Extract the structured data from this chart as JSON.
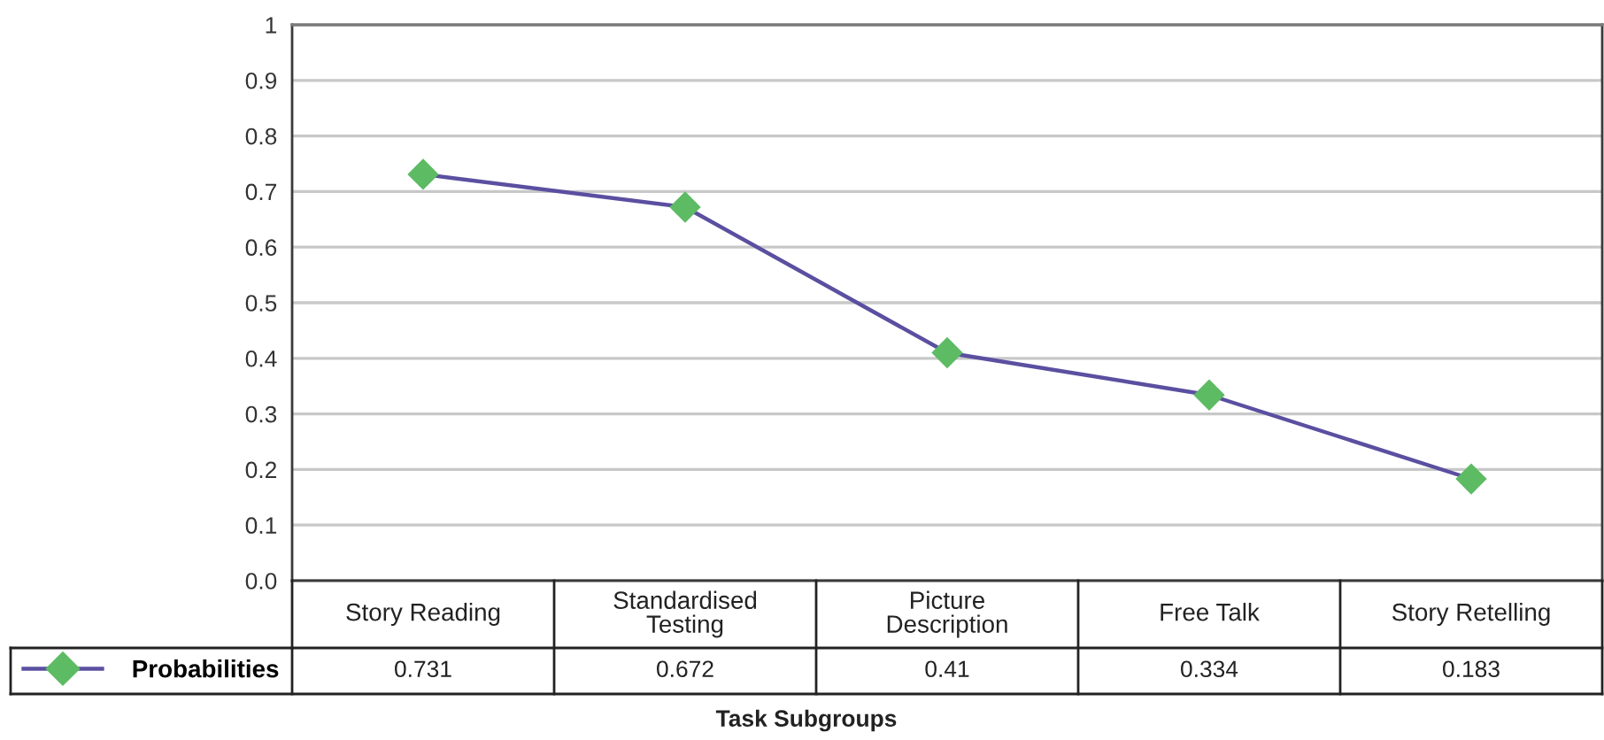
{
  "chart_data": {
    "type": "line",
    "xlabel": "Task Subgroups",
    "categories": [
      "Story Reading",
      "Standardised\nTesting",
      "Picture\nDescription",
      "Free Talk",
      "Story Retelling"
    ],
    "series": [
      {
        "name": "Probabilities",
        "color": "#5a4fa0",
        "colors": [
          "#5dbb63",
          "#5dbb63",
          "#5dbb63",
          "#5dbb63",
          "#5dbb63"
        ],
        "values": [
          0.731,
          0.672,
          0.41,
          0.334,
          0.183
        ]
      }
    ],
    "ylim": [
      0,
      1
    ],
    "yticks": [
      {
        "value": 0,
        "label": "0.0"
      },
      0.1,
      0.2,
      0.3,
      0.4,
      0.5,
      0.6,
      0.7,
      0.8,
      0.9,
      1
    ],
    "grid": "y",
    "legend": "bottom left",
    "marker": "diamond",
    "line_style": "solid",
    "data_labels": true
  }
}
